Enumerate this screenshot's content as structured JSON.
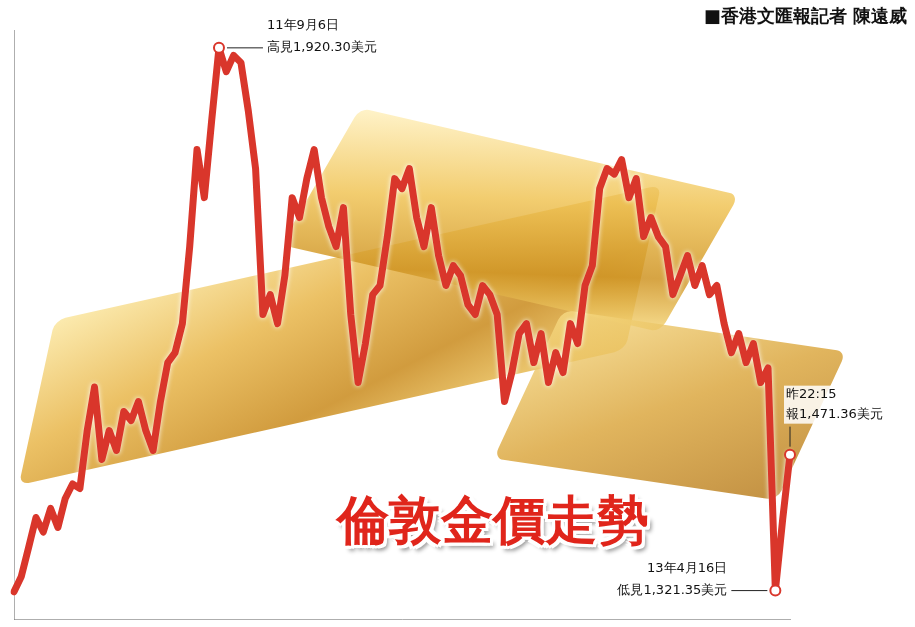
{
  "chart_data": {
    "type": "line",
    "title": "倫敦金價走勢",
    "credit": "■香港文匯報記者 陳遠威",
    "categories": [
      null,
      null,
      null,
      null,
      null,
      null,
      null,
      null,
      null,
      null,
      null,
      null,
      null,
      null,
      null,
      null,
      null,
      null,
      null,
      null,
      null,
      null,
      null,
      null,
      null,
      null,
      null,
      null,
      "11年9月6日",
      null,
      null,
      null,
      null,
      null,
      null,
      null,
      null,
      null,
      null,
      null,
      null,
      null,
      null,
      null,
      null,
      null,
      null,
      null,
      null,
      null,
      null,
      null,
      null,
      null,
      null,
      null,
      null,
      null,
      null,
      null,
      null,
      null,
      null,
      null,
      null,
      null,
      null,
      null,
      null,
      null,
      null,
      null,
      null,
      null,
      null,
      null,
      null,
      null,
      null,
      null,
      null,
      null,
      null,
      null,
      null,
      null,
      null,
      null,
      null,
      null,
      null,
      null,
      null,
      null,
      null,
      null,
      null,
      null,
      null,
      null,
      null,
      null,
      null,
      null,
      "13年4月16日",
      null,
      "昨22:15"
    ],
    "values": [
      1320,
      1337,
      1369,
      1402,
      1386,
      1412,
      1391,
      1423,
      1439,
      1434,
      1498,
      1546,
      1466,
      1498,
      1476,
      1519,
      1509,
      1530,
      1498,
      1476,
      1530,
      1573,
      1584,
      1616,
      1701,
      1808,
      1755,
      1840,
      1920.3,
      1894,
      1912,
      1904,
      1851,
      1787,
      1626,
      1648,
      1616,
      1669,
      1755,
      1733,
      1776,
      1808,
      1755,
      1723,
      1701,
      1744,
      1626,
      1551,
      1594,
      1648,
      1658,
      1712,
      1776,
      1765,
      1787,
      1733,
      1701,
      1744,
      1691,
      1658,
      1680,
      1669,
      1637,
      1626,
      1658,
      1648,
      1626,
      1530,
      1562,
      1605,
      1616,
      1573,
      1605,
      1551,
      1584,
      1562,
      1616,
      1594,
      1658,
      1680,
      1765,
      1787,
      1781,
      1797,
      1755,
      1776,
      1712,
      1733,
      1712,
      1701,
      1648,
      1669,
      1691,
      1658,
      1680,
      1648,
      1658,
      1616,
      1584,
      1605,
      1573,
      1594,
      1551,
      1567,
      1321.35,
      1400,
      1471.36
    ],
    "color": "#d9362b",
    "ylim": [
      1290,
      1940
    ],
    "tick_labels": false,
    "grid": false,
    "annotations": [
      {
        "category": "11年9月6日",
        "label": "高見1,920.30美元",
        "value": 1920.3
      },
      {
        "category": "13年4月16日",
        "label": "低見1,321.35美元",
        "value": 1321.35
      },
      {
        "category": "昨22:15",
        "label": "報1,471.36美元",
        "value": 1471.36
      }
    ]
  }
}
